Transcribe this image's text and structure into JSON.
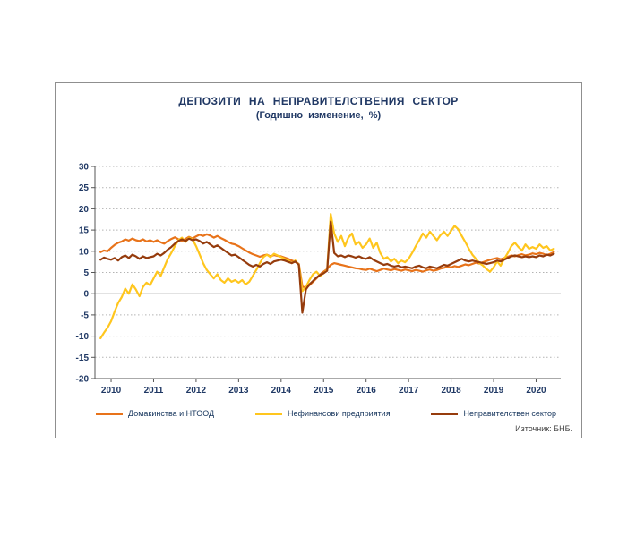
{
  "chart": {
    "title": "ДЕПОЗИТИ НА НЕПРАВИТЕЛСТВЕНИЯ СЕКТОР",
    "subtitle": "(Годишно изменение, %)",
    "source": "Източник: БНБ."
  },
  "chart_data": {
    "type": "line",
    "title": "ДЕПОЗИТИ НА НЕПРАВИТЕЛСТВЕНИЯ СЕКТОР",
    "subtitle": "(Годишно изменение, %)",
    "ylabel": "Годишно изменение, %",
    "ylim": [
      -20,
      30
    ],
    "yticks": [
      30,
      25,
      20,
      15,
      10,
      5,
      0,
      -5,
      -10,
      -15,
      -20
    ],
    "xlim": [
      2009.62,
      2020.58
    ],
    "x_start": 2009.75,
    "points_per_year": 12,
    "year_labels": [
      2010,
      2011,
      2012,
      2013,
      2014,
      2015,
      2016,
      2017,
      2018,
      2019,
      2020
    ],
    "grid": "dotted-horizontal",
    "legend_position": "bottom",
    "series": [
      {
        "key": "households",
        "name": "Домакинства и НТООД",
        "color": "#E8731A",
        "values": [
          9.8,
          10.2,
          10.0,
          10.8,
          11.5,
          12.0,
          12.3,
          12.8,
          12.5,
          13.0,
          12.6,
          12.4,
          12.8,
          12.3,
          12.6,
          12.2,
          12.6,
          12.1,
          11.8,
          12.4,
          12.9,
          13.3,
          12.8,
          12.4,
          12.9,
          13.4,
          13.0,
          13.5,
          13.9,
          13.6,
          14.0,
          13.7,
          13.2,
          13.6,
          13.1,
          12.7,
          12.2,
          11.8,
          11.6,
          11.2,
          10.7,
          10.2,
          9.7,
          9.3,
          9.0,
          8.7,
          9.0,
          9.2,
          8.8,
          9.1,
          8.9,
          8.8,
          8.5,
          8.2,
          7.8,
          7.5,
          7.0,
          1.8,
          1.2,
          2.0,
          2.8,
          3.6,
          4.5,
          5.2,
          5.8,
          6.8,
          7.2,
          7.0,
          6.8,
          6.6,
          6.4,
          6.2,
          6.0,
          5.9,
          5.7,
          5.6,
          5.9,
          5.6,
          5.3,
          5.6,
          5.9,
          5.7,
          5.5,
          5.8,
          5.6,
          5.4,
          5.7,
          5.5,
          5.3,
          5.6,
          5.4,
          5.2,
          5.5,
          5.7,
          5.4,
          5.6,
          5.9,
          6.1,
          6.4,
          6.2,
          6.5,
          6.3,
          6.6,
          6.9,
          6.7,
          7.0,
          7.3,
          7.1,
          7.4,
          7.7,
          8.0,
          8.2,
          8.4,
          8.1,
          8.4,
          8.7,
          9.0,
          8.8,
          9.1,
          9.3,
          9.0,
          9.2,
          9.5,
          9.3,
          9.6,
          9.4,
          9.1,
          9.4,
          9.8
        ]
      },
      {
        "key": "nonfinancial",
        "name": "Нефинансови предприятия",
        "color": "#FFC61E",
        "values": [
          -10.5,
          -9.2,
          -8.0,
          -6.5,
          -4.2,
          -2.2,
          -0.8,
          1.2,
          0.0,
          2.2,
          1.0,
          -0.6,
          1.6,
          2.6,
          2.0,
          3.6,
          5.2,
          4.2,
          6.2,
          8.2,
          9.6,
          11.2,
          12.6,
          13.2,
          12.2,
          13.2,
          12.8,
          11.2,
          9.2,
          7.2,
          5.6,
          4.6,
          3.6,
          4.6,
          3.2,
          2.6,
          3.6,
          2.8,
          3.2,
          2.6,
          3.2,
          2.2,
          2.8,
          4.2,
          5.6,
          7.2,
          8.6,
          9.2,
          8.6,
          9.4,
          9.0,
          8.6,
          8.2,
          7.8,
          7.2,
          7.8,
          6.8,
          0.6,
          1.6,
          3.2,
          4.6,
          5.2,
          4.2,
          4.8,
          5.6,
          18.8,
          14.2,
          12.2,
          13.6,
          11.2,
          13.2,
          14.2,
          11.6,
          12.2,
          10.8,
          11.6,
          13.0,
          10.8,
          12.0,
          9.6,
          8.2,
          8.6,
          7.6,
          8.2,
          7.2,
          7.8,
          7.4,
          8.2,
          9.6,
          11.2,
          12.6,
          14.2,
          13.2,
          14.6,
          13.6,
          12.6,
          13.8,
          14.6,
          13.6,
          14.8,
          16.0,
          15.2,
          13.6,
          12.2,
          10.6,
          9.2,
          8.2,
          7.2,
          6.6,
          5.8,
          5.2,
          6.2,
          7.6,
          6.6,
          8.2,
          9.6,
          11.2,
          12.0,
          11.0,
          10.2,
          11.6,
          10.6,
          11.0,
          10.6,
          11.6,
          10.8,
          11.2,
          10.2,
          10.6
        ]
      },
      {
        "key": "nongovernment",
        "name": "Неправителствен сектор",
        "color": "#963C0D",
        "values": [
          8.0,
          8.5,
          8.2,
          8.0,
          8.4,
          7.8,
          8.6,
          9.0,
          8.4,
          9.2,
          8.8,
          8.2,
          8.8,
          8.4,
          8.6,
          8.8,
          9.4,
          9.0,
          9.6,
          10.4,
          11.0,
          11.8,
          12.4,
          12.8,
          12.4,
          13.0,
          12.6,
          12.8,
          12.4,
          11.8,
          12.2,
          11.6,
          11.0,
          11.4,
          10.8,
          10.2,
          9.6,
          9.0,
          9.2,
          8.6,
          8.0,
          7.4,
          6.8,
          6.4,
          6.8,
          6.4,
          7.0,
          7.4,
          7.0,
          7.6,
          7.8,
          8.0,
          7.8,
          7.5,
          7.2,
          7.6,
          6.8,
          -4.5,
          1.0,
          2.2,
          3.0,
          3.8,
          4.4,
          4.8,
          5.4,
          17.0,
          9.6,
          8.8,
          9.0,
          8.6,
          9.0,
          8.8,
          8.5,
          8.8,
          8.4,
          8.2,
          8.6,
          8.0,
          7.6,
          7.2,
          6.8,
          7.0,
          6.6,
          6.4,
          6.6,
          6.2,
          6.4,
          6.2,
          6.0,
          6.4,
          6.6,
          6.2,
          6.0,
          6.4,
          6.2,
          6.0,
          6.4,
          6.8,
          6.6,
          7.0,
          7.4,
          7.8,
          8.2,
          7.8,
          7.6,
          7.8,
          7.6,
          7.4,
          7.2,
          7.0,
          7.2,
          7.4,
          7.8,
          7.6,
          8.0,
          8.4,
          8.8,
          9.0,
          8.8,
          8.6,
          8.8,
          8.6,
          8.8,
          8.6,
          9.0,
          8.8,
          9.2,
          9.0,
          9.4
        ]
      }
    ]
  }
}
